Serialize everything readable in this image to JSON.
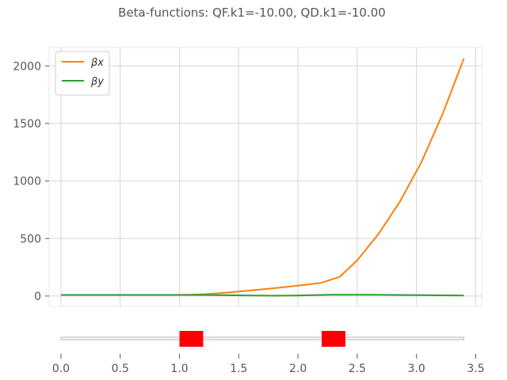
{
  "chart_data": {
    "type": "line",
    "title": "Beta-functions: QF.k1=-10.00, QD.k1=-10.00",
    "xlabel": "",
    "ylabel": "",
    "xlim": [
      -0.1,
      3.55
    ],
    "ylim": [
      -90,
      2160
    ],
    "grid": true,
    "legend_position": "top-left",
    "x_ticks": [
      "0.0",
      "0.5",
      "1.0",
      "1.5",
      "2.0",
      "2.5",
      "3.0",
      "3.5"
    ],
    "y_ticks": [
      "0",
      "500",
      "1000",
      "1500",
      "2000"
    ],
    "series": [
      {
        "name": "βx",
        "legend_label": "βx",
        "color": "#ff7f0e",
        "x": [
          0.0,
          0.2,
          0.4,
          0.6,
          0.8,
          1.0,
          1.1,
          1.2,
          1.4,
          1.6,
          1.8,
          2.0,
          2.2,
          2.3,
          2.35,
          2.5,
          2.68,
          2.86,
          3.04,
          3.22,
          3.4
        ],
        "y": [
          10,
          10,
          10,
          10,
          10,
          10,
          11,
          15,
          30,
          48,
          68,
          90,
          115,
          150,
          165,
          310,
          540,
          820,
          1160,
          1580,
          2065
        ]
      },
      {
        "name": "βy",
        "legend_label": "βy",
        "color": "#2ca02c",
        "x": [
          0.0,
          0.4,
          0.8,
          1.0,
          1.2,
          1.4,
          1.6,
          1.8,
          2.0,
          2.2,
          2.3,
          2.4,
          2.6,
          2.8,
          3.0,
          3.2,
          3.4
        ],
        "y": [
          10,
          10,
          10,
          10,
          10,
          7,
          4,
          3,
          5,
          10,
          12,
          12,
          11,
          10,
          8,
          6,
          5
        ]
      }
    ],
    "lattice": {
      "beamline_range": [
        0.0,
        3.4
      ],
      "elements": [
        {
          "name": "QF",
          "start": 1.0,
          "end": 1.2,
          "color": "#ff0000"
        },
        {
          "name": "QD",
          "start": 2.2,
          "end": 2.4,
          "color": "#ff0000"
        }
      ]
    }
  }
}
